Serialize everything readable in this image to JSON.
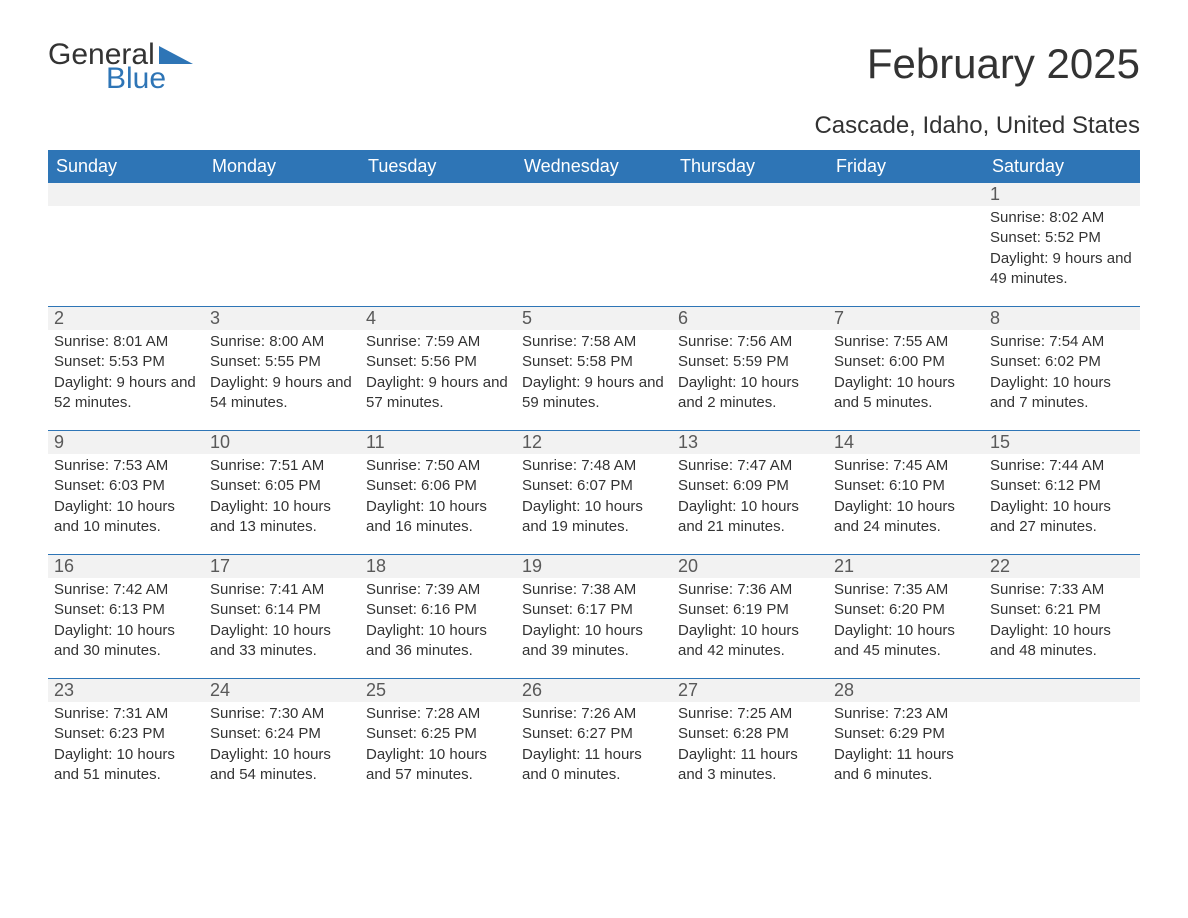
{
  "logo": {
    "text_general": "General",
    "text_blue": "Blue",
    "triangle_color": "#2e75b6"
  },
  "title": "February 2025",
  "location": "Cascade, Idaho, United States",
  "colors": {
    "header_bg": "#2e75b6",
    "header_text": "#ffffff",
    "band_bg": "#f2f2f2",
    "daynum_text": "#595959",
    "body_text": "#333333",
    "rule": "#2e75b6",
    "page_bg": "#ffffff"
  },
  "typography": {
    "title_fontsize": 42,
    "location_fontsize": 24,
    "dayheader_fontsize": 18,
    "daynum_fontsize": 18,
    "info_fontsize": 15
  },
  "day_headers": [
    "Sunday",
    "Monday",
    "Tuesday",
    "Wednesday",
    "Thursday",
    "Friday",
    "Saturday"
  ],
  "weeks": [
    [
      {
        "day": "",
        "sunrise": "",
        "sunset": "",
        "daylight": ""
      },
      {
        "day": "",
        "sunrise": "",
        "sunset": "",
        "daylight": ""
      },
      {
        "day": "",
        "sunrise": "",
        "sunset": "",
        "daylight": ""
      },
      {
        "day": "",
        "sunrise": "",
        "sunset": "",
        "daylight": ""
      },
      {
        "day": "",
        "sunrise": "",
        "sunset": "",
        "daylight": ""
      },
      {
        "day": "",
        "sunrise": "",
        "sunset": "",
        "daylight": ""
      },
      {
        "day": "1",
        "sunrise": "Sunrise: 8:02 AM",
        "sunset": "Sunset: 5:52 PM",
        "daylight": "Daylight: 9 hours and 49 minutes."
      }
    ],
    [
      {
        "day": "2",
        "sunrise": "Sunrise: 8:01 AM",
        "sunset": "Sunset: 5:53 PM",
        "daylight": "Daylight: 9 hours and 52 minutes."
      },
      {
        "day": "3",
        "sunrise": "Sunrise: 8:00 AM",
        "sunset": "Sunset: 5:55 PM",
        "daylight": "Daylight: 9 hours and 54 minutes."
      },
      {
        "day": "4",
        "sunrise": "Sunrise: 7:59 AM",
        "sunset": "Sunset: 5:56 PM",
        "daylight": "Daylight: 9 hours and 57 minutes."
      },
      {
        "day": "5",
        "sunrise": "Sunrise: 7:58 AM",
        "sunset": "Sunset: 5:58 PM",
        "daylight": "Daylight: 9 hours and 59 minutes."
      },
      {
        "day": "6",
        "sunrise": "Sunrise: 7:56 AM",
        "sunset": "Sunset: 5:59 PM",
        "daylight": "Daylight: 10 hours and 2 minutes."
      },
      {
        "day": "7",
        "sunrise": "Sunrise: 7:55 AM",
        "sunset": "Sunset: 6:00 PM",
        "daylight": "Daylight: 10 hours and 5 minutes."
      },
      {
        "day": "8",
        "sunrise": "Sunrise: 7:54 AM",
        "sunset": "Sunset: 6:02 PM",
        "daylight": "Daylight: 10 hours and 7 minutes."
      }
    ],
    [
      {
        "day": "9",
        "sunrise": "Sunrise: 7:53 AM",
        "sunset": "Sunset: 6:03 PM",
        "daylight": "Daylight: 10 hours and 10 minutes."
      },
      {
        "day": "10",
        "sunrise": "Sunrise: 7:51 AM",
        "sunset": "Sunset: 6:05 PM",
        "daylight": "Daylight: 10 hours and 13 minutes."
      },
      {
        "day": "11",
        "sunrise": "Sunrise: 7:50 AM",
        "sunset": "Sunset: 6:06 PM",
        "daylight": "Daylight: 10 hours and 16 minutes."
      },
      {
        "day": "12",
        "sunrise": "Sunrise: 7:48 AM",
        "sunset": "Sunset: 6:07 PM",
        "daylight": "Daylight: 10 hours and 19 minutes."
      },
      {
        "day": "13",
        "sunrise": "Sunrise: 7:47 AM",
        "sunset": "Sunset: 6:09 PM",
        "daylight": "Daylight: 10 hours and 21 minutes."
      },
      {
        "day": "14",
        "sunrise": "Sunrise: 7:45 AM",
        "sunset": "Sunset: 6:10 PM",
        "daylight": "Daylight: 10 hours and 24 minutes."
      },
      {
        "day": "15",
        "sunrise": "Sunrise: 7:44 AM",
        "sunset": "Sunset: 6:12 PM",
        "daylight": "Daylight: 10 hours and 27 minutes."
      }
    ],
    [
      {
        "day": "16",
        "sunrise": "Sunrise: 7:42 AM",
        "sunset": "Sunset: 6:13 PM",
        "daylight": "Daylight: 10 hours and 30 minutes."
      },
      {
        "day": "17",
        "sunrise": "Sunrise: 7:41 AM",
        "sunset": "Sunset: 6:14 PM",
        "daylight": "Daylight: 10 hours and 33 minutes."
      },
      {
        "day": "18",
        "sunrise": "Sunrise: 7:39 AM",
        "sunset": "Sunset: 6:16 PM",
        "daylight": "Daylight: 10 hours and 36 minutes."
      },
      {
        "day": "19",
        "sunrise": "Sunrise: 7:38 AM",
        "sunset": "Sunset: 6:17 PM",
        "daylight": "Daylight: 10 hours and 39 minutes."
      },
      {
        "day": "20",
        "sunrise": "Sunrise: 7:36 AM",
        "sunset": "Sunset: 6:19 PM",
        "daylight": "Daylight: 10 hours and 42 minutes."
      },
      {
        "day": "21",
        "sunrise": "Sunrise: 7:35 AM",
        "sunset": "Sunset: 6:20 PM",
        "daylight": "Daylight: 10 hours and 45 minutes."
      },
      {
        "day": "22",
        "sunrise": "Sunrise: 7:33 AM",
        "sunset": "Sunset: 6:21 PM",
        "daylight": "Daylight: 10 hours and 48 minutes."
      }
    ],
    [
      {
        "day": "23",
        "sunrise": "Sunrise: 7:31 AM",
        "sunset": "Sunset: 6:23 PM",
        "daylight": "Daylight: 10 hours and 51 minutes."
      },
      {
        "day": "24",
        "sunrise": "Sunrise: 7:30 AM",
        "sunset": "Sunset: 6:24 PM",
        "daylight": "Daylight: 10 hours and 54 minutes."
      },
      {
        "day": "25",
        "sunrise": "Sunrise: 7:28 AM",
        "sunset": "Sunset: 6:25 PM",
        "daylight": "Daylight: 10 hours and 57 minutes."
      },
      {
        "day": "26",
        "sunrise": "Sunrise: 7:26 AM",
        "sunset": "Sunset: 6:27 PM",
        "daylight": "Daylight: 11 hours and 0 minutes."
      },
      {
        "day": "27",
        "sunrise": "Sunrise: 7:25 AM",
        "sunset": "Sunset: 6:28 PM",
        "daylight": "Daylight: 11 hours and 3 minutes."
      },
      {
        "day": "28",
        "sunrise": "Sunrise: 7:23 AM",
        "sunset": "Sunset: 6:29 PM",
        "daylight": "Daylight: 11 hours and 6 minutes."
      },
      {
        "day": "",
        "sunrise": "",
        "sunset": "",
        "daylight": ""
      }
    ]
  ]
}
